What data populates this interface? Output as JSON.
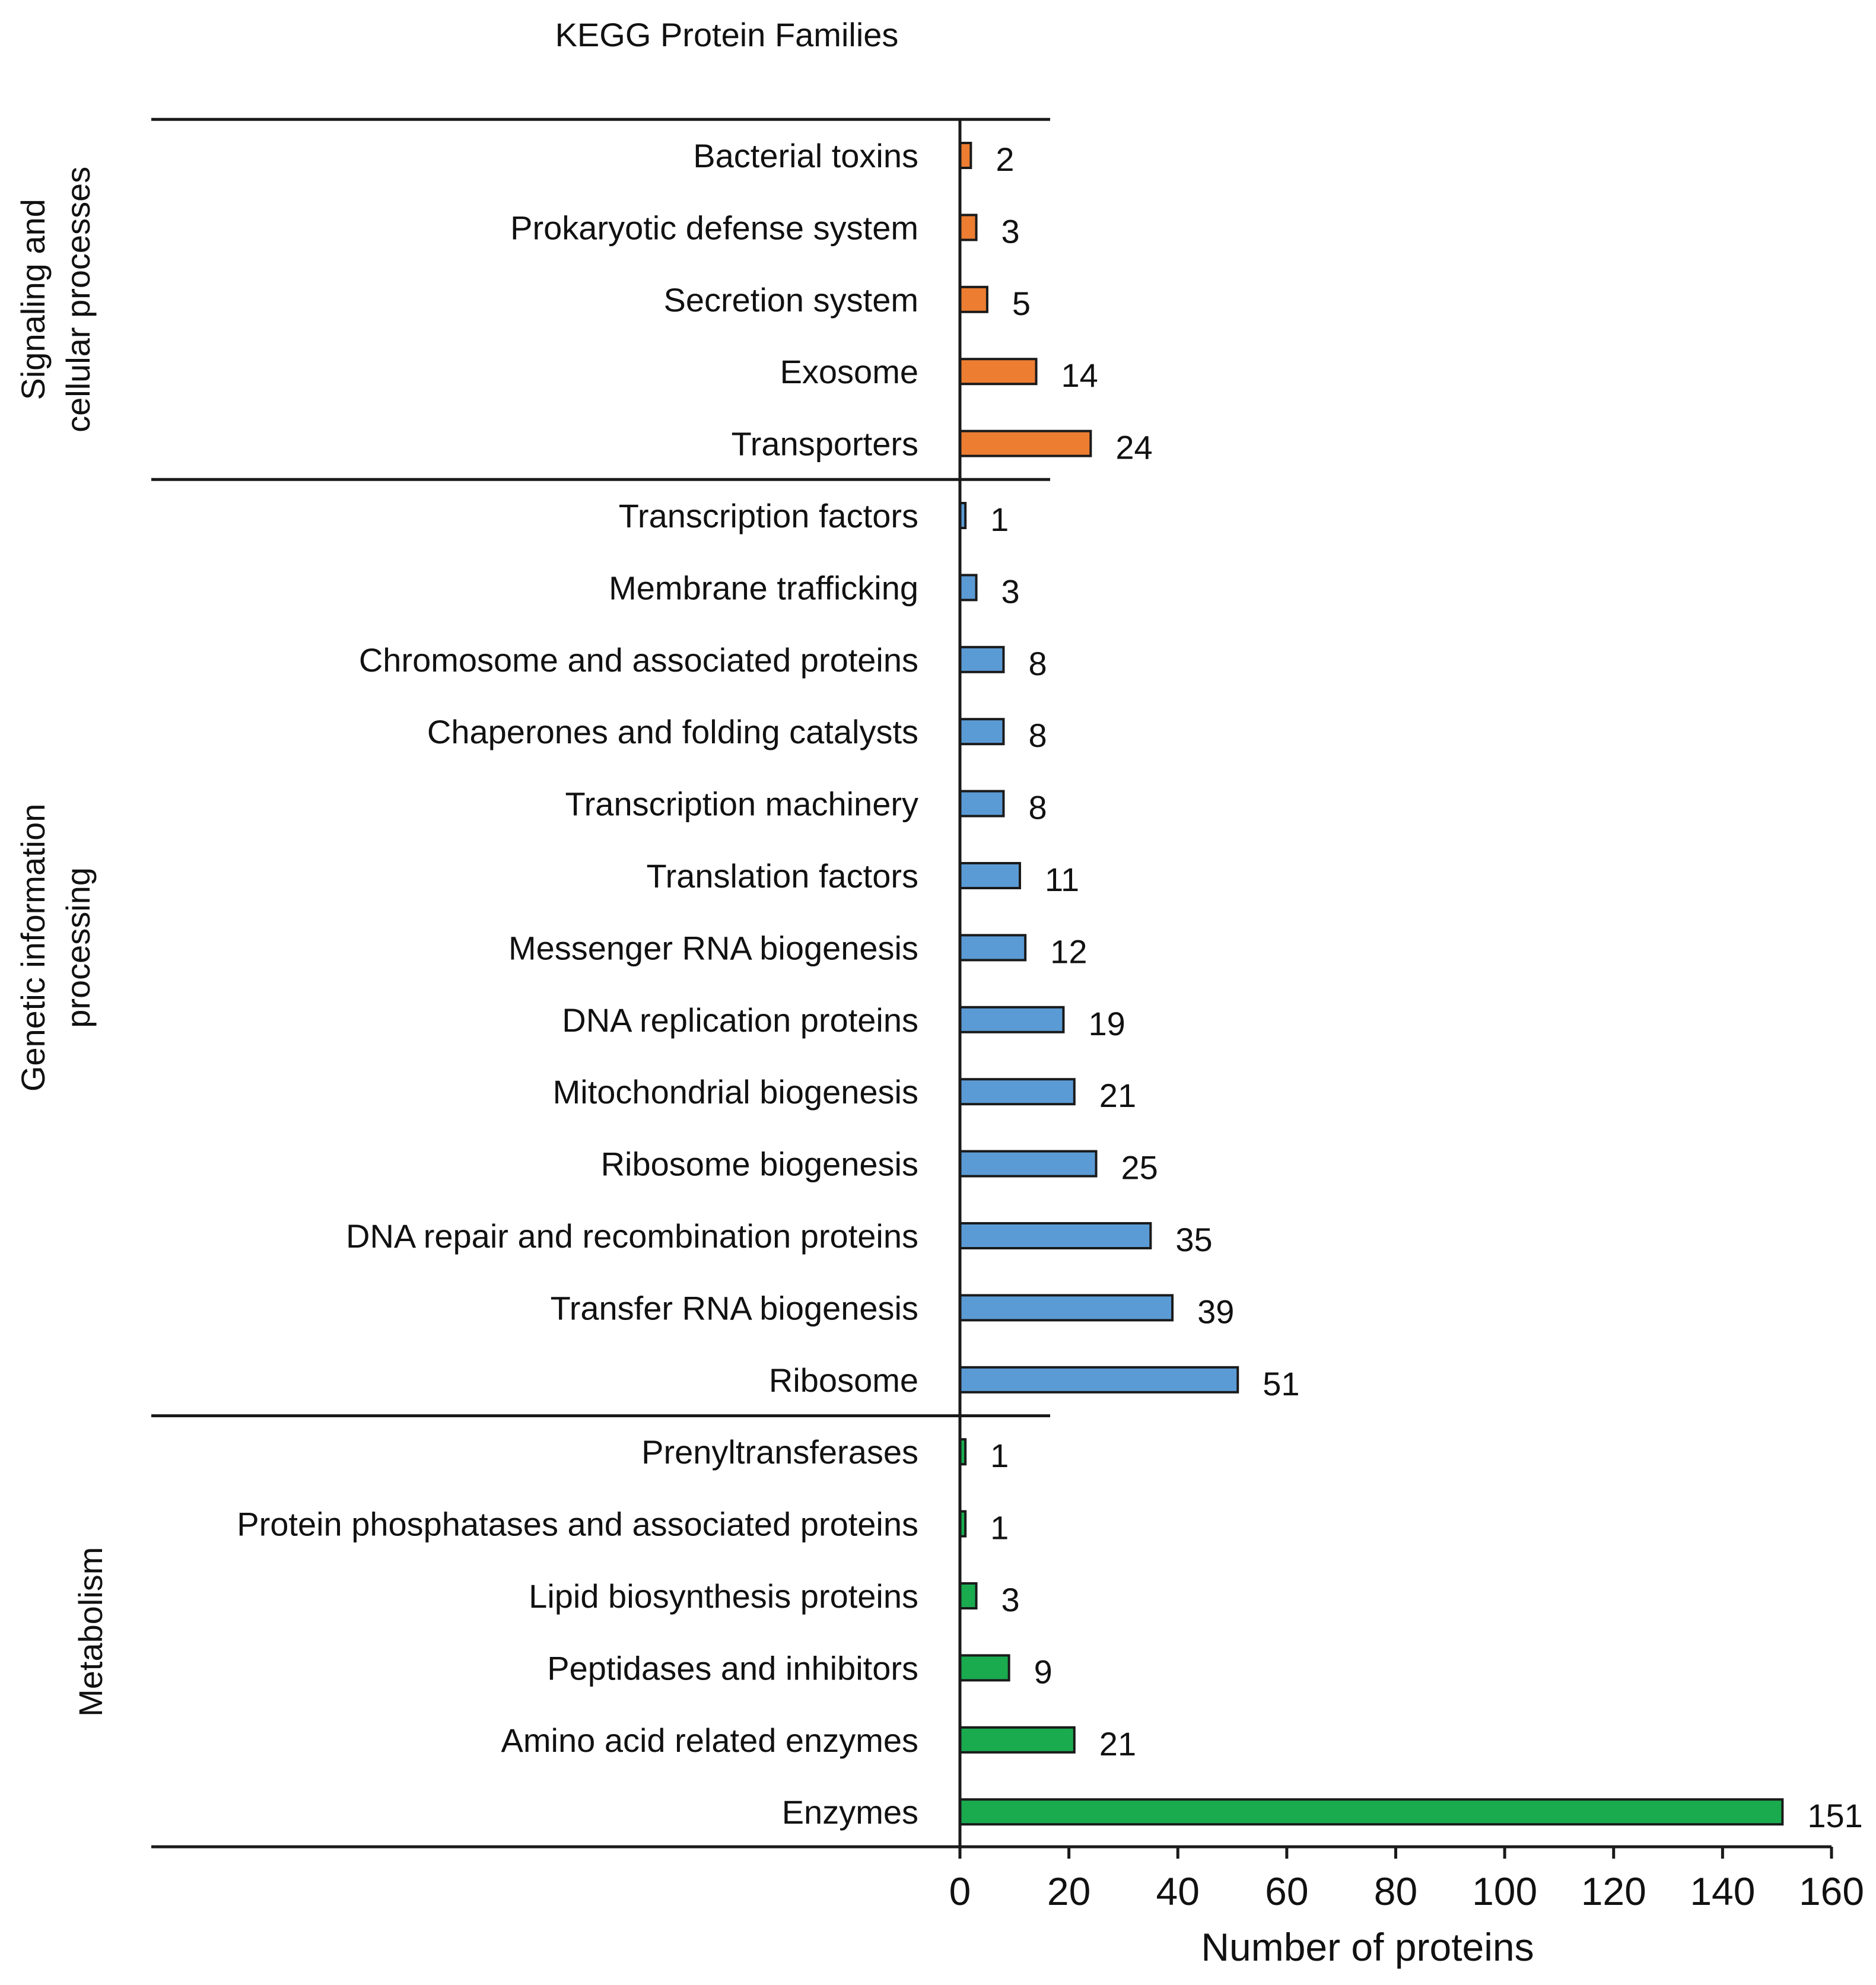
{
  "chart_data": {
    "type": "bar",
    "orientation": "horizontal",
    "title": "KEGG Protein Families",
    "xlabel": "Number of proteins",
    "ylabel": "",
    "xlim": [
      0,
      160
    ],
    "xticks": [
      0,
      20,
      40,
      60,
      80,
      100,
      120,
      140,
      160
    ],
    "colors": {
      "Signaling and cellular processes": "#ed7d31",
      "Genetic information processing": "#5b9bd5",
      "Metabolism": "#1aab4f"
    },
    "groups": [
      {
        "name": "Signaling and cellular processes",
        "label_lines": [
          "Signaling and",
          "cellular processes"
        ],
        "categories": [
          "Bacterial toxins",
          "Prokaryotic defense system",
          "Secretion system",
          "Exosome",
          "Transporters"
        ],
        "values": [
          2,
          3,
          5,
          14,
          24
        ]
      },
      {
        "name": "Genetic information processing",
        "label_lines": [
          "Genetic information",
          "processing"
        ],
        "categories": [
          "Transcription factors",
          "Membrane trafficking",
          "Chromosome and associated proteins",
          "Chaperones and folding catalysts",
          "Transcription machinery",
          "Translation factors",
          "Messenger RNA biogenesis",
          "DNA replication proteins",
          "Mitochondrial biogenesis",
          "Ribosome biogenesis",
          "DNA repair and recombination proteins",
          "Transfer RNA biogenesis",
          "Ribosome"
        ],
        "values": [
          1,
          3,
          8,
          8,
          8,
          11,
          12,
          19,
          21,
          25,
          35,
          39,
          51
        ]
      },
      {
        "name": "Metabolism",
        "label_lines": [
          "Metabolism"
        ],
        "categories": [
          "Prenyltransferases",
          "Protein phosphatases and associated proteins",
          "Lipid biosynthesis proteins",
          "Peptidases and inhibitors",
          "Amino acid related enzymes",
          "Enzymes"
        ],
        "values": [
          1,
          1,
          3,
          9,
          21,
          151
        ]
      }
    ]
  }
}
